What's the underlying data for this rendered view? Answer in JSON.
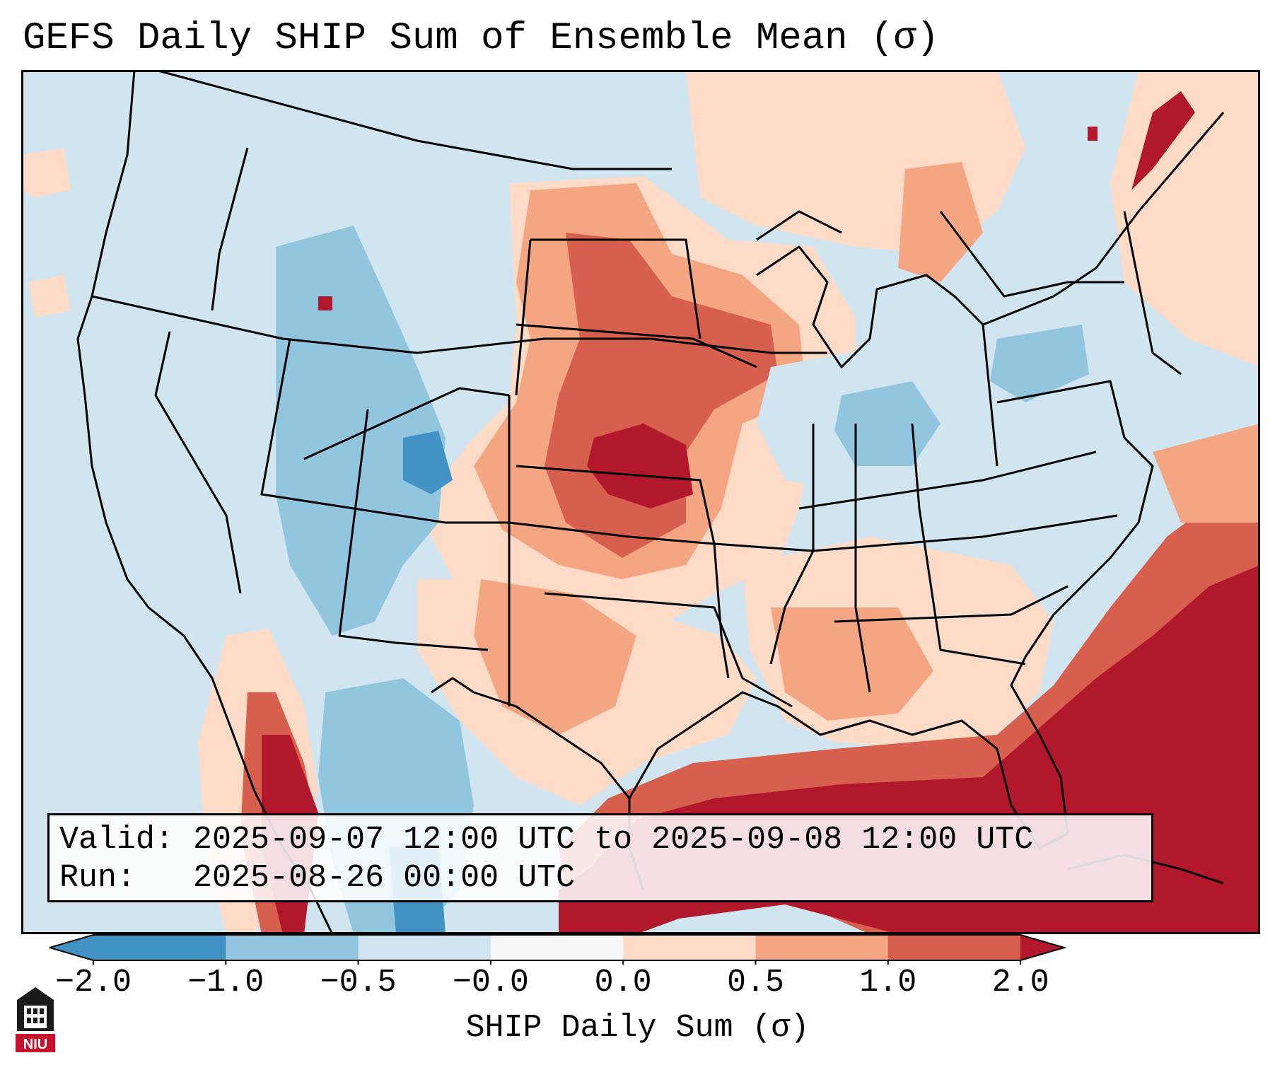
{
  "title": "GEFS Daily SHIP Sum of Ensemble Mean (σ)",
  "info": {
    "valid_label": "Valid:",
    "valid_value": "2025-09-07 12:00 UTC to 2025-09-08 12:00 UTC",
    "run_label": "Run:",
    "run_value": "2025-08-26 00:00 UTC"
  },
  "colorbar": {
    "label": "SHIP Daily Sum (σ)",
    "ticks": [
      "−2.0",
      "−1.0",
      "−0.5",
      "−0.0",
      "0.0",
      "0.5",
      "1.0",
      "2.0"
    ],
    "colors": [
      "#4292c6",
      "#92c5de",
      "#d1e5f0",
      "#f7f7f7",
      "#fddbc7",
      "#f4a582",
      "#d6604d",
      "#b2182b"
    ],
    "extend": "both"
  },
  "logo": {
    "text": "NIU"
  },
  "map_regions": {
    "background": "#d1e5f0",
    "southwest_desert": "#92c5de",
    "central_plains": "#f4a582",
    "southern_plains_core": "#d6604d",
    "kansas_maximum": "#b2182b",
    "gulf_and_atlantic": "#b2182b",
    "southeast": "#fddbc7",
    "ohio_valley": "#92c5de"
  }
}
